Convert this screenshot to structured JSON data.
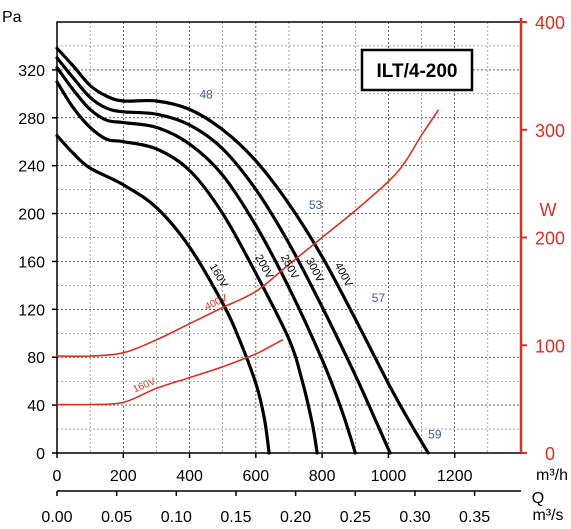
{
  "chart_data": {
    "type": "line",
    "title": "ILT/4-200",
    "colors": {
      "pressure_curves": "#000000",
      "power_curves": "#d93025",
      "power_axis": "#d93025",
      "efficiency_labels": "#3b5ea8",
      "grid": "#000000"
    },
    "grid": true,
    "axes": {
      "x_flow_h": {
        "label": "m³/h",
        "range": [
          0,
          1400
        ],
        "ticks": [
          "0",
          "200",
          "400",
          "600",
          "800",
          "1000",
          "1200"
        ]
      },
      "x_flow_s": {
        "label": "m³/s",
        "quantity_label": "Q",
        "range": [
          0,
          0.3889
        ],
        "ticks": [
          "0.00",
          "0.05",
          "0.10",
          "0.15",
          "0.20",
          "0.25",
          "0.30",
          "0.35"
        ]
      },
      "y_pressure": {
        "label": "Pa",
        "range": [
          0,
          360
        ],
        "ticks": [
          "0",
          "40",
          "80",
          "120",
          "160",
          "200",
          "240",
          "280",
          "320"
        ]
      },
      "y_power": {
        "label": "W",
        "range": [
          0,
          400
        ],
        "ticks": [
          "0",
          "100",
          "200",
          "300",
          "400"
        ]
      }
    },
    "series": [
      {
        "name": "400V",
        "kind": "pressure",
        "points": [
          [
            0,
            338
          ],
          [
            50,
            323
          ],
          [
            100,
            307
          ],
          [
            150,
            298
          ],
          [
            200,
            294
          ],
          [
            300,
            294
          ],
          [
            400,
            287
          ],
          [
            500,
            270
          ],
          [
            600,
            244
          ],
          [
            700,
            208
          ],
          [
            800,
            164
          ],
          [
            900,
            112
          ],
          [
            1000,
            58
          ],
          [
            1060,
            28
          ],
          [
            1120,
            0
          ]
        ]
      },
      {
        "name": "300V",
        "kind": "pressure",
        "points": [
          [
            0,
            330
          ],
          [
            50,
            313
          ],
          [
            100,
            297
          ],
          [
            150,
            288
          ],
          [
            200,
            285
          ],
          [
            300,
            283
          ],
          [
            400,
            274
          ],
          [
            500,
            254
          ],
          [
            600,
            220
          ],
          [
            700,
            175
          ],
          [
            800,
            122
          ],
          [
            900,
            65
          ],
          [
            960,
            28
          ],
          [
            1005,
            0
          ]
        ]
      },
      {
        "name": "250V",
        "kind": "pressure",
        "points": [
          [
            0,
            322
          ],
          [
            50,
            303
          ],
          [
            100,
            287
          ],
          [
            150,
            278
          ],
          [
            200,
            276
          ],
          [
            300,
            272
          ],
          [
            400,
            258
          ],
          [
            500,
            232
          ],
          [
            600,
            190
          ],
          [
            700,
            138
          ],
          [
            800,
            78
          ],
          [
            860,
            35
          ],
          [
            900,
            0
          ]
        ]
      },
      {
        "name": "200V",
        "kind": "pressure",
        "points": [
          [
            0,
            310
          ],
          [
            50,
            288
          ],
          [
            100,
            272
          ],
          [
            150,
            262
          ],
          [
            200,
            260
          ],
          [
            300,
            254
          ],
          [
            400,
            236
          ],
          [
            500,
            200
          ],
          [
            600,
            150
          ],
          [
            700,
            95
          ],
          [
            740,
            60
          ],
          [
            770,
            25
          ],
          [
            785,
            0
          ]
        ]
      },
      {
        "name": "160V",
        "kind": "pressure",
        "points": [
          [
            0,
            265
          ],
          [
            50,
            250
          ],
          [
            100,
            238
          ],
          [
            200,
            224
          ],
          [
            300,
            205
          ],
          [
            400,
            172
          ],
          [
            500,
            125
          ],
          [
            550,
            95
          ],
          [
            600,
            58
          ],
          [
            625,
            30
          ],
          [
            640,
            0
          ]
        ]
      },
      {
        "name": "400V",
        "kind": "power",
        "points": [
          [
            0,
            90
          ],
          [
            100,
            90
          ],
          [
            200,
            93
          ],
          [
            300,
            105
          ],
          [
            400,
            120
          ],
          [
            500,
            135
          ],
          [
            600,
            150
          ],
          [
            700,
            175
          ],
          [
            800,
            200
          ],
          [
            900,
            225
          ],
          [
            1000,
            252
          ],
          [
            1050,
            270
          ],
          [
            1100,
            295
          ],
          [
            1150,
            318
          ]
        ]
      },
      {
        "name": "160V",
        "kind": "power",
        "points": [
          [
            0,
            45
          ],
          [
            100,
            45
          ],
          [
            200,
            47
          ],
          [
            300,
            60
          ],
          [
            400,
            70
          ],
          [
            500,
            80
          ],
          [
            600,
            92
          ],
          [
            650,
            100
          ],
          [
            680,
            105
          ]
        ]
      }
    ],
    "efficiency_labels": [
      {
        "text": "48",
        "x": 450,
        "y": 296
      },
      {
        "text": "53",
        "x": 780,
        "y": 204
      },
      {
        "text": "57",
        "x": 970,
        "y": 126
      },
      {
        "text": "59",
        "x": 1140,
        "y": 12
      }
    ]
  }
}
